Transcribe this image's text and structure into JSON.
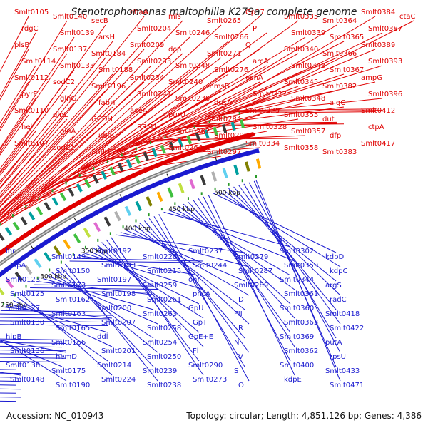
{
  "title": "Stenotrophomonas maltophilia K279a, complete genome",
  "footer": {
    "accession": "Accession: NC_010943",
    "topology": "Topology: circular; Length: 4,851,126 bp; Genes: 4,386"
  },
  "ticks": [
    "150 kbp",
    "200 kbp",
    "250 kbp",
    "300 kbp",
    "350 kbp",
    "400 kbp",
    "450 kbp",
    "500 kbp"
  ],
  "colors": {
    "forward": "#e00000",
    "reverse": "#1a1ad0",
    "backbone": "#888888"
  },
  "top_labels": [
    "Smlt0105",
    "rdgC",
    "plsB",
    "Smlt0114",
    "Smlt0112",
    "pyrF",
    "Smlt0110",
    "hel",
    "Smlt0107",
    "Smlt0140",
    "Smlt0139",
    "Smlt0137",
    "Smlt0133",
    "sodC2",
    "glnG",
    "glnL",
    "glnA",
    "sodC1",
    "secB",
    "arsH",
    "Smlt0184",
    "Smlt0188",
    "Smlt0196",
    "fabH",
    "GCDH",
    "ubiB",
    "Smlt0203",
    "dhaA",
    "Smlt0204",
    "Smlt0209",
    "Smlt0233",
    "Smlt0234",
    "Smlt0241",
    "aceA",
    "RRM1",
    "truC",
    "mls",
    "Smlt0246",
    "dcp",
    "Smlt0248",
    "Smlt0240",
    "Smlt0236",
    "purU",
    "Smlt0262",
    "Smlt0264",
    "Smlt0265",
    "Smlt0266",
    "Smlt0271",
    "Smlt0276",
    "mmsB",
    "dusA",
    "Smlt0284",
    "Smlt0298",
    "Smlt0297",
    "Gp17",
    "P",
    "Q",
    "arcA",
    "ecnA",
    "Smlt0327",
    "Smlt0325",
    "Smlt0328",
    "Smlt0334",
    "Smlt0335",
    "Smlt0339",
    "Smlt0340",
    "Smlt0343",
    "Smlt0345",
    "Smlt0348",
    "Smlt0355",
    "Smlt0357",
    "Smlt0358",
    "Smlt0364",
    "Smlt0365",
    "Smlt0366",
    "Smlt0367",
    "Smlt0382",
    "algC",
    "dut",
    "dfp",
    "Smlt0383",
    "Smlt0384",
    "Smlt0387",
    "Smlt0389",
    "Smlt0393",
    "ampG",
    "Smlt0396",
    "Smlt0412",
    "ctpA",
    "Smlt0417",
    "ctaC"
  ],
  "bottom_labels": [
    "lhr",
    "hipA",
    "Smlt0123",
    "Smlt0125",
    "Smlt0127",
    "Smlt0130",
    "hipB",
    "Smlt0136",
    "Smlt0138",
    "Smlt0148",
    "Smlt0149",
    "Smlt0150",
    "Smlt0173",
    "Smlt0162",
    "Smlt0163",
    "Smlt0165",
    "Smlt0166",
    "hemD",
    "Smlt0175",
    "Smlt0190",
    "Smlt0192",
    "Smlt0193",
    "Smlt0197",
    "Smlt0198",
    "Smlt0200",
    "Smlt0207",
    "ddl",
    "Smlt0201",
    "Smlt0214",
    "Smlt0224",
    "Smlt0228",
    "Smlt0215",
    "Smlt0259",
    "Smlt0261",
    "Smlt0263",
    "Smlt0258",
    "Smlt0254",
    "Smlt0250",
    "Smlt0239",
    "Smlt0238",
    "Smlt0237",
    "Smlt0244",
    "ohr",
    "pncA",
    "GpU",
    "GpT",
    "GpE+E",
    "Fl",
    "Smlt0290",
    "Smlt0273",
    "Smlt0279",
    "Smlt0287",
    "Smlt0289",
    "D",
    "FII",
    "R",
    "N",
    "V",
    "S",
    "O",
    "Smlt0302",
    "Smlt0359",
    "Smlt0344",
    "Smlt0361",
    "Smlt0360",
    "Smlt0363",
    "Smlt0369",
    "Smlt0362",
    "Smlt0400",
    "kdpE",
    "kdpD",
    "kdpC",
    "argS",
    "radC",
    "Smlt0418",
    "Smlt0422",
    "putA",
    "rpsU",
    "Smlt0433",
    "Smlt0471"
  ]
}
